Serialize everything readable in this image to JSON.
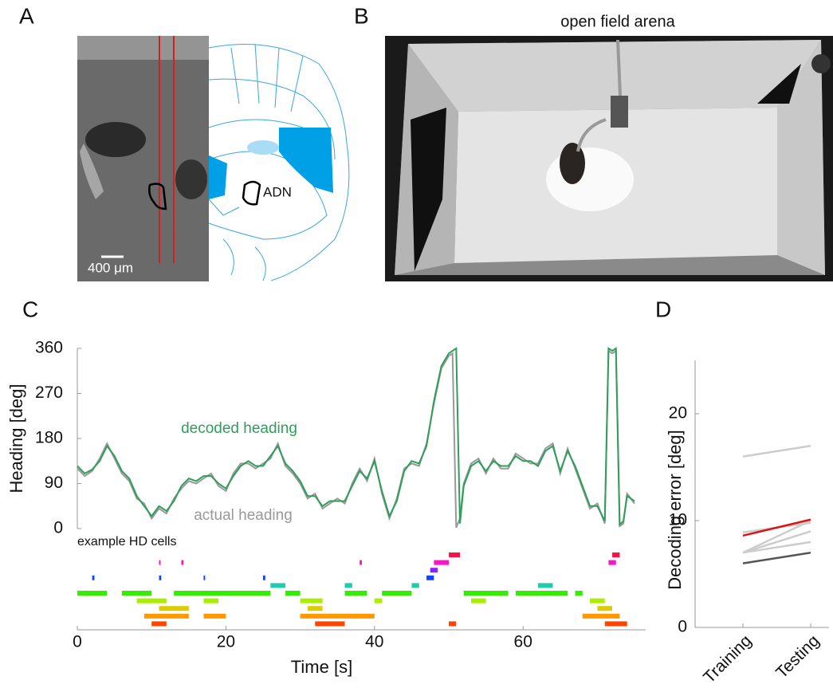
{
  "panels": {
    "A": {
      "letter": "A",
      "scale_bar": "400 μm",
      "region": "ADN"
    },
    "B": {
      "letter": "B",
      "title": "open field arena"
    },
    "C": {
      "letter": "C"
    },
    "D": {
      "letter": "D"
    }
  },
  "chart_data": [
    {
      "type": "line",
      "xlabel": "Time [s]",
      "ylabel": "Heading [deg]",
      "x": [
        0,
        1,
        2,
        3,
        4,
        5,
        6,
        7,
        8,
        9,
        10,
        11,
        12,
        13,
        14,
        15,
        16,
        17,
        18,
        19,
        20,
        21,
        22,
        23,
        24,
        25,
        26,
        27,
        28,
        29,
        30,
        31,
        32,
        33,
        34,
        35,
        36,
        37,
        38,
        39,
        40,
        41,
        42,
        43,
        44,
        45,
        46,
        47,
        48,
        49,
        50,
        50.5,
        51,
        51.5,
        52,
        53,
        54,
        55,
        56,
        57,
        58,
        59,
        60,
        61,
        62,
        63,
        64,
        65,
        66,
        67,
        68,
        69,
        70,
        71,
        71.5,
        72,
        72.5,
        73,
        73.5,
        74,
        75
      ],
      "series": [
        {
          "name": "actual heading",
          "color": "#999999",
          "values": [
            120,
            105,
            115,
            140,
            170,
            140,
            110,
            95,
            60,
            50,
            20,
            40,
            30,
            60,
            80,
            95,
            90,
            100,
            110,
            85,
            75,
            110,
            130,
            130,
            120,
            130,
            140,
            170,
            125,
            110,
            90,
            60,
            70,
            40,
            50,
            60,
            50,
            90,
            120,
            95,
            140,
            70,
            20,
            60,
            120,
            130,
            125,
            170,
            250,
            320,
            345,
            350,
            2,
            20,
            90,
            130,
            140,
            110,
            140,
            120,
            120,
            150,
            140,
            130,
            130,
            160,
            170,
            110,
            160,
            120,
            80,
            40,
            50,
            10,
            355,
            350,
            355,
            5,
            10,
            70,
            50
          ]
        },
        {
          "name": "decoded heading",
          "color": "#2e9e5a",
          "values": [
            125,
            110,
            118,
            135,
            165,
            145,
            115,
            100,
            65,
            45,
            25,
            45,
            35,
            55,
            85,
            100,
            95,
            105,
            105,
            90,
            80,
            105,
            125,
            135,
            125,
            125,
            145,
            165,
            130,
            115,
            95,
            65,
            65,
            45,
            55,
            55,
            55,
            85,
            115,
            100,
            135,
            75,
            25,
            55,
            115,
            135,
            130,
            165,
            255,
            325,
            350,
            355,
            360,
            10,
            85,
            125,
            135,
            115,
            135,
            125,
            125,
            145,
            135,
            135,
            125,
            155,
            165,
            115,
            155,
            125,
            85,
            45,
            45,
            15,
            360,
            355,
            360,
            8,
            15,
            65,
            55
          ]
        }
      ],
      "xlim": [
        0,
        76.5
      ],
      "ylim": [
        0,
        360
      ],
      "xticks": [
        0,
        20,
        40,
        60
      ],
      "yticks": [
        0,
        90,
        180,
        270,
        360
      ]
    },
    {
      "type": "raster",
      "title": "example HD cells",
      "xlim": [
        0,
        76.5
      ],
      "series": [
        {
          "color": "#ff1144",
          "spans": [
            [
              50,
              51.5
            ],
            [
              72,
              73
            ]
          ]
        },
        {
          "color": "#ff11cc",
          "spans": [
            [
              11,
              11.2
            ],
            [
              14,
              14.3
            ],
            [
              38,
              38.3
            ],
            [
              48,
              50
            ],
            [
              71.5,
              72.5
            ]
          ]
        },
        {
          "color": "#8822ff",
          "spans": [
            [
              47.5,
              48.5
            ]
          ]
        },
        {
          "color": "#1144ff",
          "spans": [
            [
              2,
              2.3
            ],
            [
              11,
              11.3
            ],
            [
              17,
              17.2
            ],
            [
              25,
              25.3
            ],
            [
              47,
              48
            ]
          ]
        },
        {
          "color": "#22ccaa",
          "spans": [
            [
              26,
              28
            ],
            [
              36,
              37
            ],
            [
              45,
              46
            ],
            [
              62,
              64
            ]
          ]
        },
        {
          "color": "#33ee00",
          "spans": [
            [
              0,
              4
            ],
            [
              6,
              10
            ],
            [
              13,
              26
            ],
            [
              28,
              30
            ],
            [
              36,
              39
            ],
            [
              41,
              45
            ],
            [
              52,
              58
            ],
            [
              59,
              66
            ],
            [
              67,
              68
            ]
          ]
        },
        {
          "color": "#aaee00",
          "spans": [
            [
              8,
              12
            ],
            [
              17,
              19
            ],
            [
              30,
              33
            ],
            [
              40,
              41
            ],
            [
              53,
              55
            ],
            [
              69,
              71
            ]
          ]
        },
        {
          "color": "#ddcc00",
          "spans": [
            [
              11,
              15
            ],
            [
              31,
              33
            ],
            [
              70,
              72
            ]
          ]
        },
        {
          "color": "#ff9900",
          "spans": [
            [
              9,
              15
            ],
            [
              17,
              20
            ],
            [
              30,
              40
            ],
            [
              68,
              73
            ]
          ]
        },
        {
          "color": "#ff4400",
          "spans": [
            [
              10,
              12
            ],
            [
              32,
              36
            ],
            [
              50,
              51
            ],
            [
              71,
              74
            ]
          ]
        }
      ]
    },
    {
      "type": "slope",
      "ylabel": "Decoding error [deg]",
      "categories": [
        "Training",
        "Testing"
      ],
      "ylim": [
        0,
        25
      ],
      "yticks": [
        0,
        10,
        20
      ],
      "series": [
        {
          "color": "#cccccc",
          "values": [
            16,
            17
          ]
        },
        {
          "color": "#cccccc",
          "values": [
            8.9,
            9.8
          ]
        },
        {
          "color": "#cccccc",
          "values": [
            7,
            10
          ]
        },
        {
          "color": "#cccccc",
          "values": [
            7,
            9
          ]
        },
        {
          "color": "#cccccc",
          "values": [
            7,
            8
          ]
        },
        {
          "color": "#dd1111",
          "values": [
            8.6,
            10.1
          ]
        },
        {
          "color": "#555555",
          "values": [
            6,
            7
          ]
        }
      ]
    }
  ]
}
